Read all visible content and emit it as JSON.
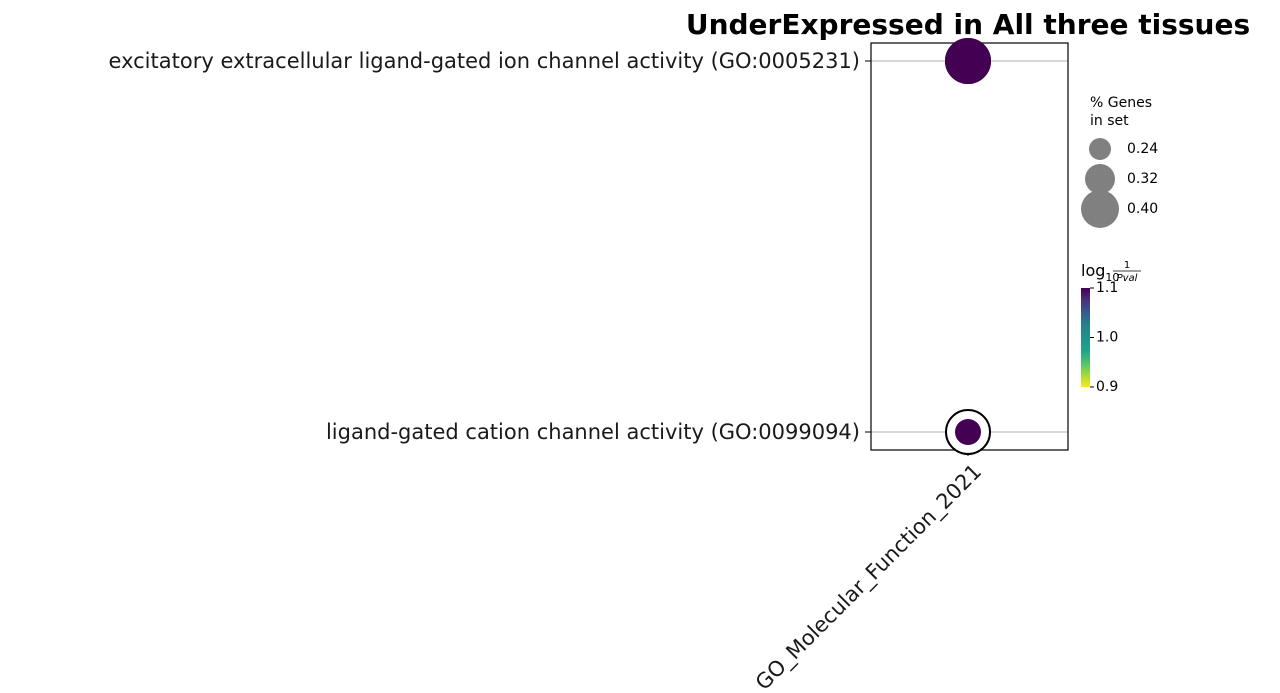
{
  "chart_data": {
    "type": "scatter",
    "title": "UnderExpressed in All three tissues",
    "x_categories": [
      "GO_Molecular_Function_2021"
    ],
    "y_categories": [
      "excitatory extracellular ligand-gated ion channel activity (GO:0005231)",
      "ligand-gated cation channel activity (GO:0099094)"
    ],
    "points": [
      {
        "x": "GO_Molecular_Function_2021",
        "y": "excitatory extracellular ligand-gated ion channel activity (GO:0005231)",
        "percent_genes_in_set": 0.4,
        "log10_inv_pval": 1.1,
        "highlighted": true
      },
      {
        "x": "GO_Molecular_Function_2021",
        "y": "ligand-gated cation channel activity (GO:0099094)",
        "percent_genes_in_set": 0.2,
        "log10_inv_pval": 1.1,
        "highlighted": true
      }
    ],
    "size_legend": {
      "title_line1": "% Genes",
      "title_line2": "in set",
      "entries": [
        {
          "label": "0.24",
          "value": 0.24
        },
        {
          "label": "0.32",
          "value": 0.32
        },
        {
          "label": "0.40",
          "value": 0.4
        }
      ]
    },
    "colorbar": {
      "label_main": "log",
      "label_sub": "10",
      "label_num": "1",
      "label_den": "Pval",
      "min": 0.9,
      "max": 1.1,
      "ticks": [
        {
          "label": "1.1",
          "value": 1.1
        },
        {
          "label": "1.0",
          "value": 1.0
        },
        {
          "label": "0.9",
          "value": 0.9
        }
      ],
      "colormap": "viridis_r"
    },
    "grid": "horizontal"
  },
  "colors": {
    "marker": "#440154",
    "legend_marker": "#808080",
    "highlight_ring": "#000000",
    "gridline": "#b0b0b0",
    "axes": "#000000"
  }
}
